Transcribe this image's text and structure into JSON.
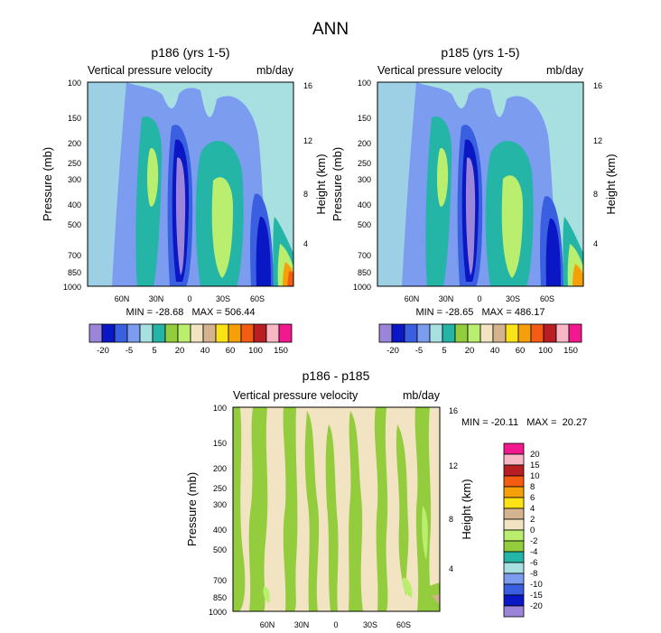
{
  "figure_title": "ANN",
  "chart_data": [
    {
      "type": "heatmap",
      "id": "p186",
      "title": "p186 (yrs 1-5)",
      "subtitle_left": "Vertical pressure velocity",
      "subtitle_right": "mb/day",
      "ylabel": "Pressure (mb)",
      "ylabel_right": "Height (km)",
      "y_ticks": [
        "100",
        "150",
        "200",
        "250",
        "300",
        "400",
        "500",
        "700",
        "850",
        "1000"
      ],
      "y_right_ticks": [
        "16",
        "12",
        "8",
        "4"
      ],
      "x_ticks": [
        "60N",
        "30N",
        "0",
        "30S",
        "60S"
      ],
      "stats": "MIN = -28.68   MAX = 506.44",
      "levels": [
        -20,
        -15,
        -10,
        -5,
        0,
        5,
        10,
        20,
        30,
        40,
        50,
        60,
        80,
        100,
        120,
        150
      ],
      "colorbar_labels": [
        "-20",
        "-5",
        "5",
        "20",
        "40",
        "60",
        "100",
        "150"
      ],
      "colors": [
        "#9b85d9",
        "#0a17c4",
        "#3a5fe0",
        "#7b9cef",
        "#a8e0e2",
        "#24b5a6",
        "#93cc3c",
        "#b9ee6e",
        "#f2e4c2",
        "#d4b48f",
        "#fbe216",
        "#f6a009",
        "#f45c14",
        "#b81e24",
        "#f7b7c4",
        "#f2188e"
      ]
    },
    {
      "type": "heatmap",
      "id": "p185",
      "title": "p185 (yrs 1-5)",
      "subtitle_left": "Vertical pressure velocity",
      "subtitle_right": "mb/day",
      "ylabel": "Pressure (mb)",
      "ylabel_right": "Height (km)",
      "y_ticks": [
        "100",
        "150",
        "200",
        "250",
        "300",
        "400",
        "500",
        "700",
        "850",
        "1000"
      ],
      "y_right_ticks": [
        "16",
        "12",
        "8",
        "4"
      ],
      "x_ticks": [
        "60N",
        "30N",
        "0",
        "30S",
        "60S"
      ],
      "stats": "MIN = -28.65   MAX = 486.17",
      "levels": [
        -20,
        -15,
        -10,
        -5,
        0,
        5,
        10,
        20,
        30,
        40,
        50,
        60,
        80,
        100,
        120,
        150
      ],
      "colorbar_labels": [
        "-20",
        "-5",
        "5",
        "20",
        "40",
        "60",
        "100",
        "150"
      ],
      "colors": [
        "#9b85d9",
        "#0a17c4",
        "#3a5fe0",
        "#7b9cef",
        "#a8e0e2",
        "#24b5a6",
        "#93cc3c",
        "#b9ee6e",
        "#f2e4c2",
        "#d4b48f",
        "#fbe216",
        "#f6a009",
        "#f45c14",
        "#b81e24",
        "#f7b7c4",
        "#f2188e"
      ]
    },
    {
      "type": "heatmap",
      "id": "diff",
      "title": "p186 - p185",
      "subtitle_left": "Vertical pressure velocity",
      "subtitle_right": "mb/day",
      "ylabel": "Pressure (mb)",
      "ylabel_right": "Height (km)",
      "y_ticks": [
        "100",
        "150",
        "200",
        "250",
        "300",
        "400",
        "500",
        "700",
        "850",
        "1000"
      ],
      "y_right_ticks": [
        "16",
        "12",
        "8",
        "4"
      ],
      "x_ticks": [
        "60N",
        "30N",
        "0",
        "30S",
        "60S"
      ],
      "stats": "MIN = -20.11   MAX =  20.27",
      "levels": [
        -20,
        -15,
        -10,
        -8,
        -6,
        -4,
        -2,
        0,
        2,
        4,
        6,
        8,
        10,
        15,
        20
      ],
      "colorbar_labels": [
        "20",
        "15",
        "10",
        "8",
        "6",
        "4",
        "2",
        "0",
        "-2",
        "-4",
        "-6",
        "-8",
        "-10",
        "-15",
        "-20"
      ],
      "colors": [
        "#f2188e",
        "#f7b7c4",
        "#b81e24",
        "#f45c14",
        "#f6a009",
        "#fbe216",
        "#d4b48f",
        "#f2e4c2",
        "#b9ee6e",
        "#93cc3c",
        "#24b5a6",
        "#a8e0e2",
        "#7b9cef",
        "#3a5fe0",
        "#0a17c4",
        "#9b85d9"
      ]
    }
  ]
}
